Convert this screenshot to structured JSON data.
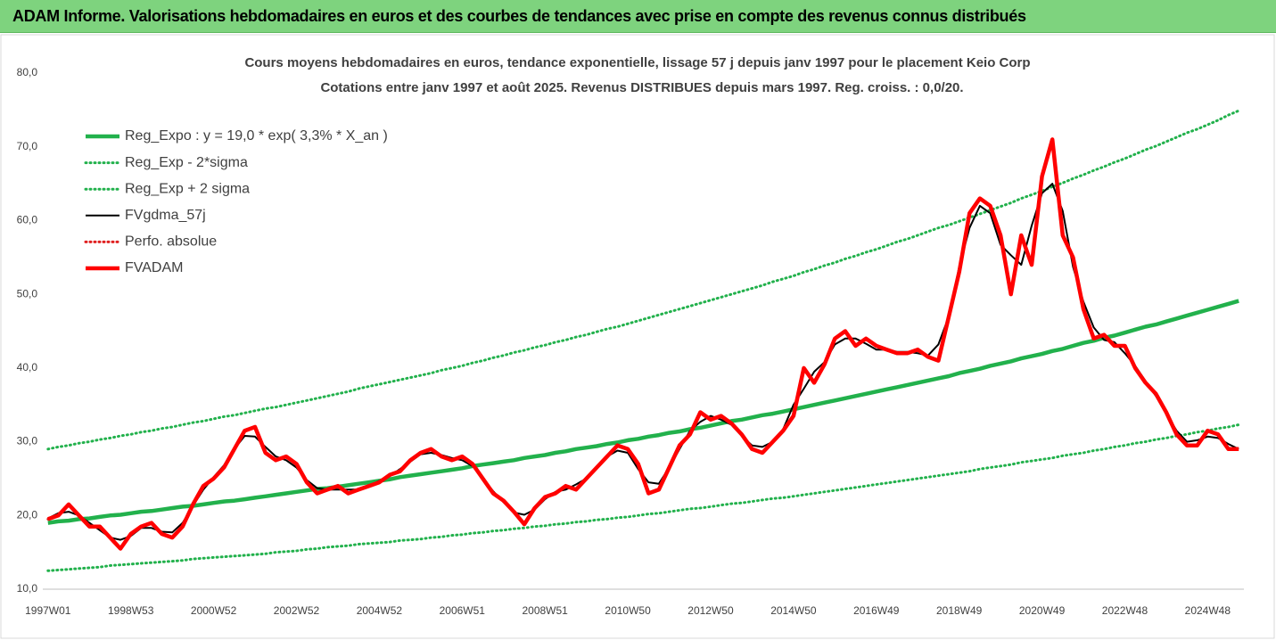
{
  "header": {
    "title": "ADAM Informe. Valorisations hebdomadaires en euros et des courbes de tendances avec prise en compte des revenus connus distribués"
  },
  "chart_data": {
    "type": "line",
    "title": "Cours moyens hebdomadaires en euros, tendance exponentielle, lissage 57 j depuis janv 1997 pour le placement Keio Corp",
    "subtitle": "Cotations entre janv 1997 et août 2025.  Revenus DISTRIBUES depuis mars 1997. Reg. croiss. : 0,0/20.",
    "categories": [
      "1997W01",
      null,
      null,
      null,
      null,
      null,
      null,
      null,
      "1998W53",
      null,
      null,
      null,
      null,
      null,
      null,
      null,
      "2000W52",
      null,
      null,
      null,
      null,
      null,
      null,
      null,
      "2002W52",
      null,
      null,
      null,
      null,
      null,
      null,
      null,
      "2004W52",
      null,
      null,
      null,
      null,
      null,
      null,
      null,
      "2006W51",
      null,
      null,
      null,
      null,
      null,
      null,
      null,
      "2008W51",
      null,
      null,
      null,
      null,
      null,
      null,
      null,
      "2010W50",
      null,
      null,
      null,
      null,
      null,
      null,
      null,
      "2012W50",
      null,
      null,
      null,
      null,
      null,
      null,
      null,
      "2014W50",
      null,
      null,
      null,
      null,
      null,
      null,
      null,
      "2016W49",
      null,
      null,
      null,
      null,
      null,
      null,
      null,
      "2018W49",
      null,
      null,
      null,
      null,
      null,
      null,
      null,
      "2020W49",
      null,
      null,
      null,
      null,
      null,
      null,
      null,
      "2022W48",
      null,
      null,
      null,
      null,
      null,
      null,
      null,
      "2024W48",
      null,
      null,
      null
    ],
    "ylim": [
      10,
      80
    ],
    "yticks": [
      {
        "value": 10,
        "label": "10,0"
      },
      {
        "value": 20,
        "label": "20,0"
      },
      {
        "value": 30,
        "label": "30,0"
      },
      {
        "value": 40,
        "label": "40,0"
      },
      {
        "value": 50,
        "label": "50,0"
      },
      {
        "value": 60,
        "label": "60,0"
      },
      {
        "value": 70,
        "label": "70,0"
      },
      {
        "value": 80,
        "label": "80,0"
      }
    ],
    "grid": false,
    "legend": "upper left",
    "series": [
      {
        "name": "Reg_Expo : y = 19,0 * exp( 3,3% *  X_an )",
        "color": "#22b14c",
        "style": "thick",
        "values": [
          19.0,
          19.2,
          19.3,
          19.5,
          19.6,
          19.8,
          20.0,
          20.1,
          20.3,
          20.5,
          20.6,
          20.8,
          21.0,
          21.2,
          21.3,
          21.5,
          21.7,
          21.9,
          22.0,
          22.2,
          22.4,
          22.6,
          22.8,
          23.0,
          23.2,
          23.4,
          23.6,
          23.7,
          23.9,
          24.1,
          24.3,
          24.5,
          24.7,
          24.9,
          25.2,
          25.4,
          25.6,
          25.8,
          26.0,
          26.2,
          26.4,
          26.7,
          26.9,
          27.1,
          27.3,
          27.5,
          27.8,
          28.0,
          28.2,
          28.5,
          28.7,
          29.0,
          29.2,
          29.4,
          29.7,
          29.9,
          30.2,
          30.4,
          30.7,
          30.9,
          31.2,
          31.4,
          31.7,
          31.9,
          32.2,
          32.5,
          32.8,
          33.0,
          33.3,
          33.6,
          33.8,
          34.1,
          34.4,
          34.7,
          35.0,
          35.3,
          35.6,
          35.9,
          36.2,
          36.5,
          36.8,
          37.1,
          37.4,
          37.7,
          38.0,
          38.3,
          38.6,
          38.9,
          39.3,
          39.6,
          39.9,
          40.3,
          40.6,
          40.9,
          41.3,
          41.6,
          41.9,
          42.3,
          42.6,
          43.0,
          43.4,
          43.7,
          44.1,
          44.4,
          44.8,
          45.2,
          45.6,
          45.9,
          46.3,
          46.7,
          47.1,
          47.5,
          47.9,
          48.3,
          48.7,
          49.1
        ]
      },
      {
        "name": "Reg_Exp - 2*sigma",
        "color": "#22b14c",
        "style": "dotted",
        "values": [
          12.5,
          12.6,
          12.7,
          12.8,
          12.9,
          13.0,
          13.2,
          13.3,
          13.4,
          13.5,
          13.6,
          13.7,
          13.8,
          13.9,
          14.1,
          14.2,
          14.3,
          14.4,
          14.5,
          14.6,
          14.7,
          14.8,
          15.0,
          15.1,
          15.2,
          15.4,
          15.5,
          15.7,
          15.8,
          15.9,
          16.1,
          16.2,
          16.3,
          16.4,
          16.6,
          16.7,
          16.8,
          17.0,
          17.1,
          17.3,
          17.4,
          17.6,
          17.7,
          17.9,
          18.0,
          18.2,
          18.3,
          18.5,
          18.6,
          18.8,
          18.9,
          19.1,
          19.2,
          19.4,
          19.5,
          19.7,
          19.8,
          20.0,
          20.2,
          20.3,
          20.5,
          20.7,
          20.9,
          21.0,
          21.2,
          21.4,
          21.6,
          21.7,
          21.9,
          22.1,
          22.3,
          22.4,
          22.6,
          22.8,
          23.0,
          23.2,
          23.4,
          23.6,
          23.8,
          24.0,
          24.2,
          24.4,
          24.6,
          24.8,
          25.0,
          25.2,
          25.4,
          25.6,
          25.8,
          26.0,
          26.3,
          26.5,
          26.7,
          26.9,
          27.2,
          27.4,
          27.6,
          27.8,
          28.1,
          28.3,
          28.5,
          28.8,
          29.0,
          29.3,
          29.5,
          29.8,
          30.0,
          30.3,
          30.5,
          30.8,
          31.0,
          31.3,
          31.5,
          31.8,
          32.0,
          32.3
        ]
      },
      {
        "name": "Reg_Exp + 2 sigma",
        "color": "#22b14c",
        "style": "dotted",
        "values": [
          29.0,
          29.3,
          29.5,
          29.8,
          30.0,
          30.3,
          30.5,
          30.8,
          31.0,
          31.3,
          31.5,
          31.8,
          32.0,
          32.3,
          32.6,
          32.8,
          33.1,
          33.4,
          33.6,
          33.9,
          34.2,
          34.5,
          34.7,
          35.0,
          35.3,
          35.6,
          35.9,
          36.2,
          36.5,
          36.8,
          37.2,
          37.5,
          37.8,
          38.1,
          38.4,
          38.7,
          39.0,
          39.3,
          39.7,
          40.0,
          40.3,
          40.7,
          41.0,
          41.4,
          41.7,
          42.1,
          42.4,
          42.8,
          43.1,
          43.5,
          43.8,
          44.2,
          44.5,
          44.9,
          45.3,
          45.6,
          46.0,
          46.4,
          46.8,
          47.2,
          47.6,
          48.0,
          48.4,
          48.8,
          49.2,
          49.6,
          50.0,
          50.4,
          50.8,
          51.2,
          51.7,
          52.1,
          52.5,
          53.0,
          53.4,
          53.9,
          54.3,
          54.8,
          55.2,
          55.7,
          56.1,
          56.6,
          57.1,
          57.5,
          58.0,
          58.5,
          59.0,
          59.4,
          59.9,
          60.4,
          60.9,
          61.4,
          61.9,
          62.4,
          63.0,
          63.5,
          64.0,
          64.6,
          65.1,
          65.7,
          66.2,
          66.8,
          67.3,
          67.9,
          68.4,
          69.0,
          69.6,
          70.1,
          70.7,
          71.3,
          71.9,
          72.4,
          73.0,
          73.6,
          74.3,
          74.9
        ]
      },
      {
        "name": "FVgdma_57j",
        "color": "#000000",
        "style": "solid",
        "values": [
          19.6,
          20.3,
          20.5,
          20.0,
          19.0,
          18.0,
          17.0,
          16.7,
          17.2,
          18.3,
          18.3,
          17.8,
          17.7,
          19.0,
          21.3,
          23.5,
          25.2,
          26.8,
          29.0,
          30.8,
          30.7,
          29.3,
          28.0,
          27.5,
          26.5,
          24.8,
          23.7,
          23.5,
          23.5,
          23.5,
          23.5,
          24.0,
          24.7,
          25.3,
          26.3,
          27.3,
          28.3,
          28.5,
          28.2,
          27.8,
          27.5,
          26.7,
          25.0,
          23.3,
          21.8,
          20.4,
          20.1,
          20.8,
          22.2,
          23.2,
          23.5,
          24.2,
          25.0,
          26.5,
          28.0,
          28.8,
          28.5,
          26.3,
          24.5,
          24.3,
          26.5,
          29.0,
          31.5,
          32.7,
          33.5,
          33.0,
          32.3,
          30.8,
          29.5,
          29.3,
          30.0,
          31.7,
          35.0,
          37.2,
          39.5,
          40.8,
          43.2,
          44.0,
          44.0,
          43.3,
          42.5,
          42.5,
          42.2,
          42.2,
          42.0,
          41.7,
          43.2,
          47.0,
          53.7,
          59.0,
          62.0,
          61.0,
          56.7,
          55.3,
          54.0,
          59.3,
          63.7,
          65.0,
          61.3,
          53.7,
          49.0,
          45.5,
          43.8,
          43.5,
          42.0,
          40.3,
          38.2,
          36.2,
          33.8,
          31.5,
          30.0,
          30.2,
          30.7,
          30.5,
          29.7,
          29.0
        ]
      },
      {
        "name": "Perfo. absolue",
        "color": "#e02020",
        "style": "dotted",
        "values": [
          19.5,
          20.0,
          21.5,
          20.0,
          18.5,
          18.5,
          17.0,
          15.5,
          17.5,
          18.5,
          19.0,
          17.5,
          17.0,
          18.5,
          21.5,
          24.0,
          25.0,
          26.5,
          29.0,
          31.5,
          32.0,
          28.5,
          27.5,
          28.0,
          27.0,
          24.5,
          23.0,
          23.5,
          24.0,
          23.0,
          23.5,
          24.0,
          24.5,
          25.5,
          26.0,
          27.5,
          28.5,
          29.0,
          28.0,
          27.5,
          28.0,
          27.0,
          25.0,
          23.0,
          22.0,
          20.5,
          18.8,
          21.0,
          22.5,
          23.0,
          24.0,
          23.5,
          25.0,
          26.5,
          28.0,
          29.5,
          29.0,
          27.0,
          23.0,
          23.5,
          26.5,
          29.5,
          31.0,
          34.0,
          33.0,
          33.5,
          32.5,
          31.0,
          29.0,
          28.5,
          30.0,
          31.5,
          33.5,
          40.0,
          38.0,
          40.5,
          44.0,
          45.0,
          43.0,
          44.0,
          43.0,
          42.5,
          42.0,
          42.0,
          42.5,
          41.5,
          41.0,
          47.0,
          53.0,
          61.0,
          63.0,
          62.0,
          58.0,
          50.0,
          58.0,
          54.0,
          66.0,
          71.0,
          58.0,
          55.0,
          48.0,
          44.0,
          44.5,
          43.0,
          43.0,
          40.0,
          38.0,
          36.5,
          34.0,
          31.0,
          29.5,
          29.5,
          31.5,
          31.0,
          29.0,
          29.0
        ]
      },
      {
        "name": "FVADAM",
        "color": "#ff0000",
        "style": "thick",
        "values": [
          19.5,
          20.0,
          21.5,
          20.0,
          18.5,
          18.5,
          17.0,
          15.5,
          17.5,
          18.5,
          19.0,
          17.5,
          17.0,
          18.5,
          21.5,
          24.0,
          25.0,
          26.5,
          29.0,
          31.5,
          32.0,
          28.5,
          27.5,
          28.0,
          27.0,
          24.5,
          23.0,
          23.5,
          24.0,
          23.0,
          23.5,
          24.0,
          24.5,
          25.5,
          26.0,
          27.5,
          28.5,
          29.0,
          28.0,
          27.5,
          28.0,
          27.0,
          25.0,
          23.0,
          22.0,
          20.5,
          18.8,
          21.0,
          22.5,
          23.0,
          24.0,
          23.5,
          25.0,
          26.5,
          28.0,
          29.5,
          29.0,
          27.0,
          23.0,
          23.5,
          26.5,
          29.5,
          31.0,
          34.0,
          33.0,
          33.5,
          32.5,
          31.0,
          29.0,
          28.5,
          30.0,
          31.5,
          33.5,
          40.0,
          38.0,
          40.5,
          44.0,
          45.0,
          43.0,
          44.0,
          43.0,
          42.5,
          42.0,
          42.0,
          42.5,
          41.5,
          41.0,
          47.0,
          53.0,
          61.0,
          63.0,
          62.0,
          58.0,
          50.0,
          58.0,
          54.0,
          66.0,
          71.0,
          58.0,
          55.0,
          48.0,
          44.0,
          44.5,
          43.0,
          43.0,
          40.0,
          38.0,
          36.5,
          34.0,
          31.0,
          29.5,
          29.5,
          31.5,
          31.0,
          29.0,
          29.0
        ]
      }
    ]
  }
}
